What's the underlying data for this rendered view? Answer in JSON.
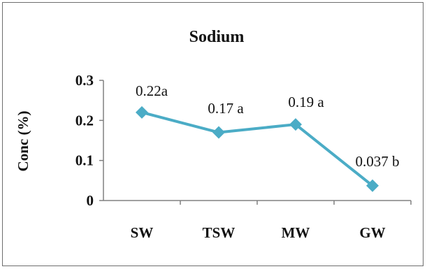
{
  "chart_data": {
    "type": "line",
    "title": "Sodium",
    "xlabel": "",
    "ylabel": "Conc (%)",
    "categories": [
      "SW",
      "TSW",
      "MW",
      "GW"
    ],
    "series": [
      {
        "values": [
          0.22,
          0.17,
          0.19,
          0.037
        ],
        "labels": [
          "0.22a",
          "0.17 a",
          "0.19 a",
          "0.037 b"
        ]
      }
    ],
    "yticks": [
      "0",
      "0.1",
      "0.2",
      "0.3"
    ],
    "ytick_values": [
      0,
      0.1,
      0.2,
      0.3
    ],
    "ylim": [
      0,
      0.3
    ],
    "grid": false,
    "legend": "none",
    "colors": {
      "line": "#4bacc6",
      "axis": "#808080",
      "frame": "#6e6e6e"
    }
  }
}
